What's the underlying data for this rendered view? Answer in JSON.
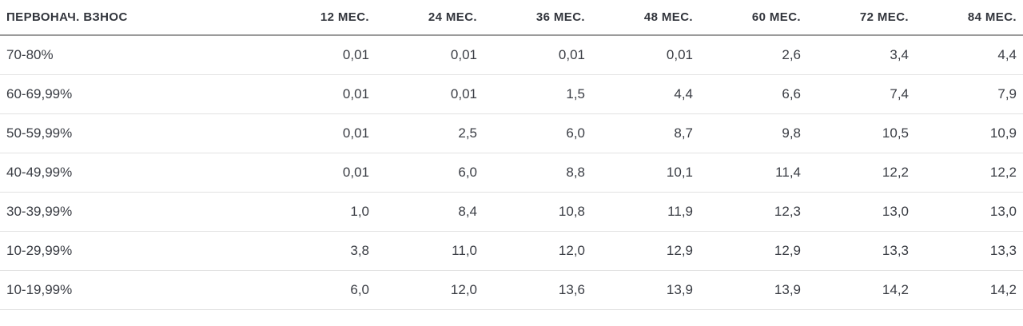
{
  "chart_data": {
    "type": "table",
    "title": "",
    "columns": [
      "ПЕРВОНАЧ. ВЗНОС",
      "12 МЕС.",
      "24 МЕС.",
      "36 МЕС.",
      "48 МЕС.",
      "60 МЕС.",
      "72 МЕС.",
      "84 МЕС."
    ],
    "rows": [
      {
        "label": "70-80%",
        "values": [
          "0,01",
          "0,01",
          "0,01",
          "0,01",
          "2,6",
          "3,4",
          "4,4"
        ]
      },
      {
        "label": "60-69,99%",
        "values": [
          "0,01",
          "0,01",
          "1,5",
          "4,4",
          "6,6",
          "7,4",
          "7,9"
        ]
      },
      {
        "label": "50-59,99%",
        "values": [
          "0,01",
          "2,5",
          "6,0",
          "8,7",
          "9,8",
          "10,5",
          "10,9"
        ]
      },
      {
        "label": "40-49,99%",
        "values": [
          "0,01",
          "6,0",
          "8,8",
          "10,1",
          "11,4",
          "12,2",
          "12,2"
        ]
      },
      {
        "label": "30-39,99%",
        "values": [
          "1,0",
          "8,4",
          "10,8",
          "11,9",
          "12,3",
          "13,0",
          "13,0"
        ]
      },
      {
        "label": "10-29,99%",
        "values": [
          "3,8",
          "11,0",
          "12,0",
          "12,9",
          "12,9",
          "13,3",
          "13,3"
        ]
      },
      {
        "label": "10-19,99%",
        "values": [
          "6,0",
          "12,0",
          "13,6",
          "13,9",
          "13,9",
          "14,2",
          "14,2"
        ]
      }
    ],
    "layout": {
      "grid": "horizontal-rules-only",
      "header_rule": "thick",
      "numeric_alignment": "right"
    }
  },
  "styles": {
    "background": "#ffffff",
    "text_color": "#3a3d44",
    "header_text_color": "#32353c",
    "header_rule_color": "#9b9b9b",
    "row_rule_color": "#e2e2e2"
  }
}
